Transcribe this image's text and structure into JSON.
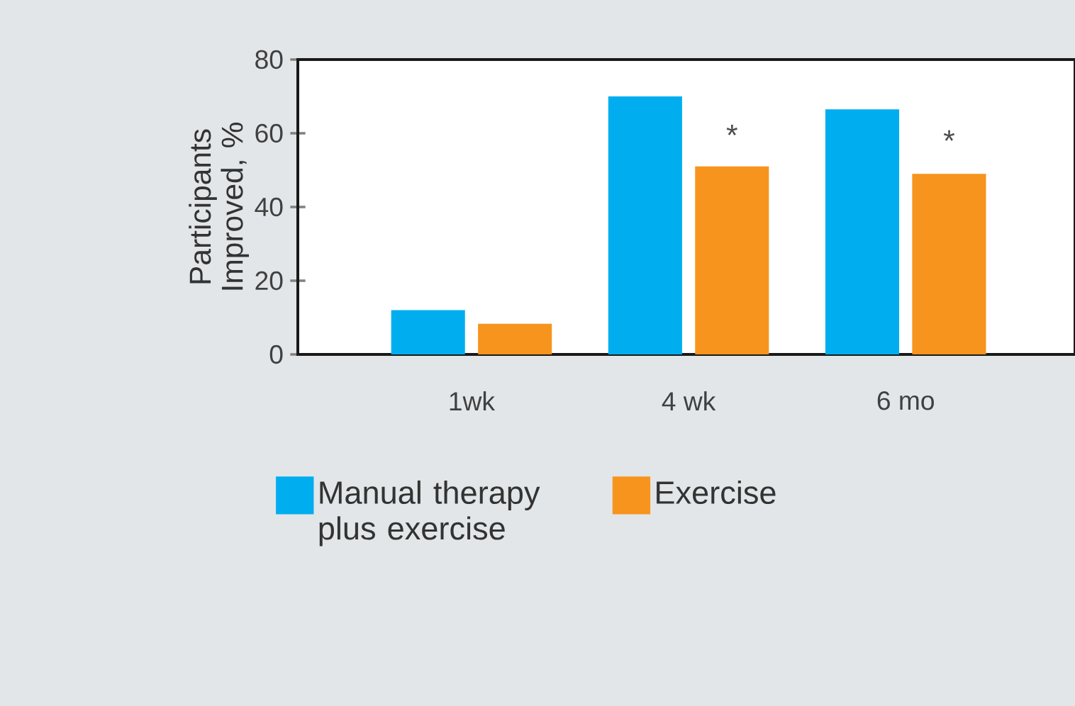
{
  "chart_data": {
    "type": "bar",
    "ylabel": "Participants Improved, %",
    "categories": [
      "1wk",
      "4 wk",
      "6 mo"
    ],
    "series": [
      {
        "name": "Manual therapy plus exercise",
        "color": "#00aeef",
        "values": [
          12,
          70,
          66.5
        ]
      },
      {
        "name": "Exercise",
        "color": "#f7941d",
        "values": [
          8.3,
          51,
          49
        ]
      }
    ],
    "ylim": [
      0,
      80
    ],
    "yticks": [
      0,
      20,
      40,
      60,
      80
    ],
    "grid": false,
    "legend": "bottom",
    "annotations": [
      {
        "text": "*",
        "x": "4 wk",
        "y": 59.5
      },
      {
        "text": "*",
        "x": "6 mo",
        "y": 58
      }
    ]
  }
}
